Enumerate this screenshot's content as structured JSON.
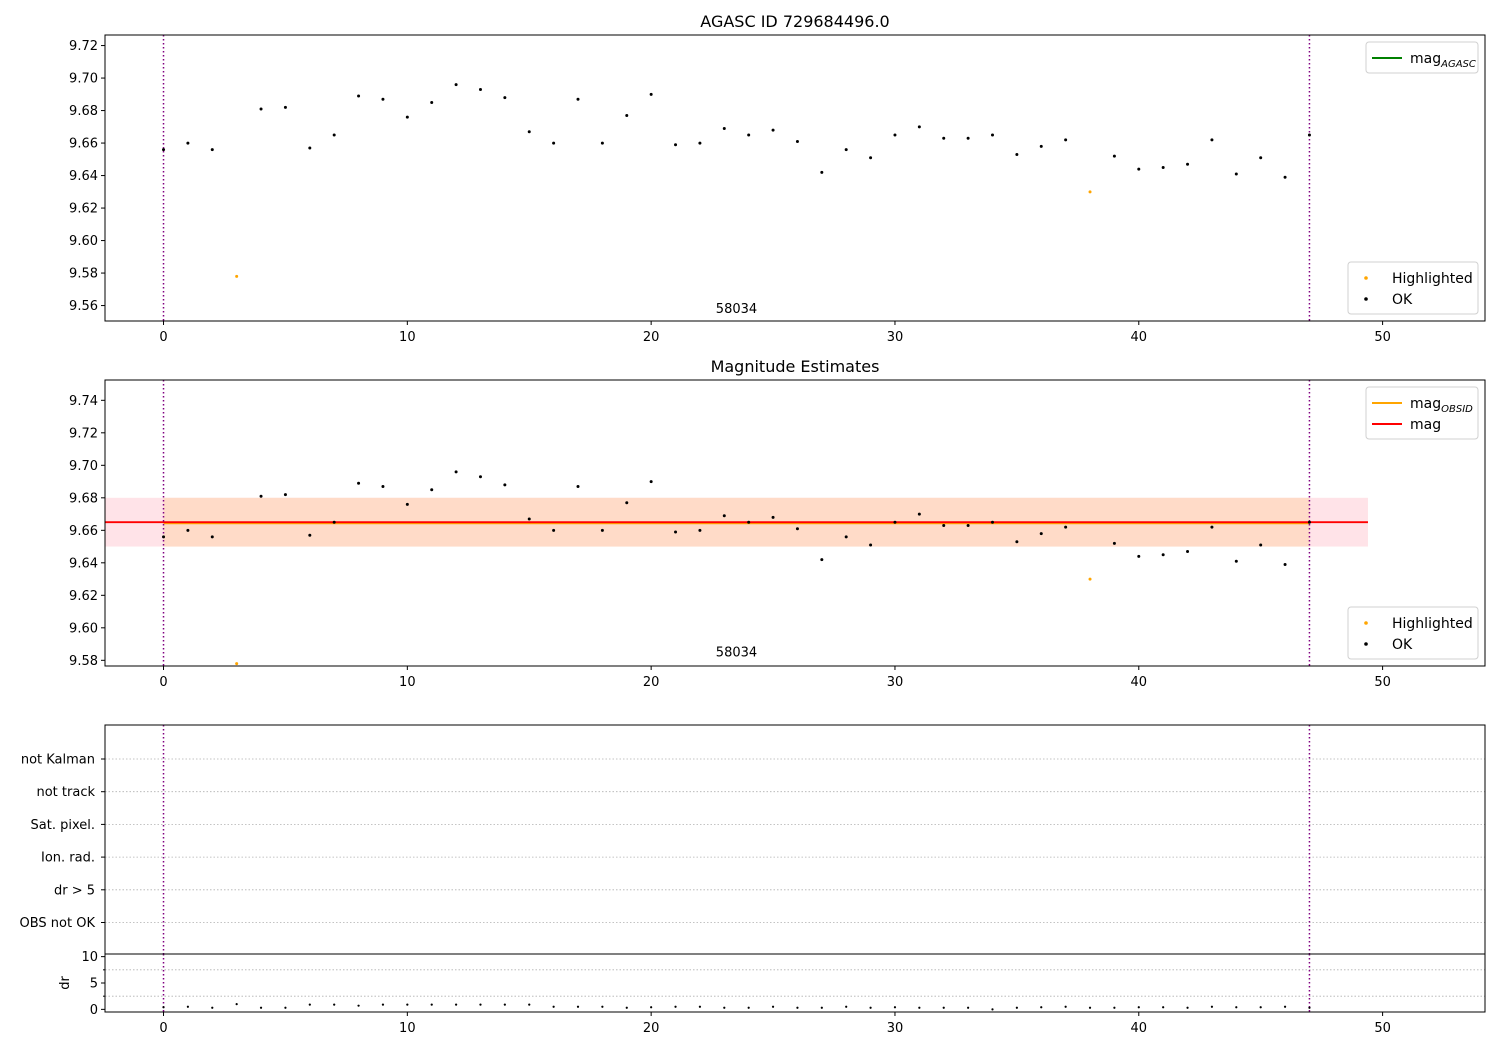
{
  "colors": {
    "ok": "#000000",
    "highlighted": "#FFA500",
    "mag_agasc": "#008000",
    "mag_obsid": "#FFA500",
    "mag": "#FF0000",
    "band_mag": "#FFC0CB",
    "band_obsid": "#FFD8BF",
    "obsid_boundary": "#800080",
    "grid": "#b0b0b0"
  },
  "chart_data": [
    {
      "id": "agasc",
      "type": "scatter",
      "title": "AGASC ID 729684496.0",
      "xlim": [
        -2.4,
        54.2
      ],
      "ylim": [
        9.5505,
        9.7265
      ],
      "yticks": [
        9.56,
        9.58,
        9.6,
        9.62,
        9.64,
        9.66,
        9.68,
        9.7,
        9.72
      ],
      "ytick_labels": [
        "9.56",
        "9.58",
        "9.60",
        "9.62",
        "9.64",
        "9.66",
        "9.68",
        "9.70",
        "9.72"
      ],
      "xticks": [
        0,
        10,
        20,
        30,
        40,
        50
      ],
      "xtick_labels": [
        "0",
        "10",
        "20",
        "30",
        "40",
        "50"
      ],
      "obsid_boundaries": [
        0,
        47
      ],
      "annotation": {
        "text": "58034",
        "x": 23.5,
        "y": 9.5555
      },
      "legend_top": {
        "position": "upper-right",
        "entries": [
          {
            "kind": "line",
            "color": "#008000",
            "label": "mag",
            "sub": "AGASC"
          }
        ]
      },
      "legend_bottom": {
        "position": "lower-right",
        "entries": [
          {
            "kind": "point",
            "color": "#FFA500",
            "label": "Highlighted"
          },
          {
            "kind": "point",
            "color": "#000000",
            "label": "OK"
          }
        ]
      },
      "series": [
        {
          "name": "OK",
          "points": [
            [
              0,
              9.656
            ],
            [
              1,
              9.66
            ],
            [
              2,
              9.656
            ],
            [
              4,
              9.681
            ],
            [
              5,
              9.682
            ],
            [
              6,
              9.657
            ],
            [
              7,
              9.665
            ],
            [
              8,
              9.689
            ],
            [
              9,
              9.687
            ],
            [
              10,
              9.676
            ],
            [
              11,
              9.685
            ],
            [
              12,
              9.696
            ],
            [
              13,
              9.693
            ],
            [
              14,
              9.688
            ],
            [
              15,
              9.667
            ],
            [
              16,
              9.66
            ],
            [
              17,
              9.687
            ],
            [
              18,
              9.66
            ],
            [
              19,
              9.677
            ],
            [
              20,
              9.69
            ],
            [
              21,
              9.659
            ],
            [
              22,
              9.66
            ],
            [
              23,
              9.669
            ],
            [
              24,
              9.665
            ],
            [
              25,
              9.668
            ],
            [
              26,
              9.661
            ],
            [
              27,
              9.642
            ],
            [
              28,
              9.656
            ],
            [
              29,
              9.651
            ],
            [
              30,
              9.665
            ],
            [
              31,
              9.67
            ],
            [
              32,
              9.663
            ],
            [
              33,
              9.663
            ],
            [
              34,
              9.665
            ],
            [
              35,
              9.653
            ],
            [
              36,
              9.658
            ],
            [
              37,
              9.662
            ],
            [
              39,
              9.652
            ],
            [
              40,
              9.644
            ],
            [
              41,
              9.645
            ],
            [
              42,
              9.647
            ],
            [
              43,
              9.662
            ],
            [
              44,
              9.641
            ],
            [
              45,
              9.651
            ],
            [
              46,
              9.639
            ],
            [
              47,
              9.665
            ]
          ]
        },
        {
          "name": "Highlighted",
          "points": [
            [
              3,
              9.578
            ],
            [
              38,
              9.63
            ]
          ]
        }
      ]
    },
    {
      "id": "estimates",
      "type": "scatter",
      "title": "Magnitude Estimates",
      "xlim": [
        -2.4,
        54.2
      ],
      "ylim": [
        9.5765,
        9.7525
      ],
      "yticks": [
        9.58,
        9.6,
        9.62,
        9.64,
        9.66,
        9.68,
        9.7,
        9.72,
        9.74
      ],
      "ytick_labels": [
        "9.58",
        "9.60",
        "9.62",
        "9.64",
        "9.66",
        "9.68",
        "9.70",
        "9.72",
        "9.74"
      ],
      "xticks": [
        0,
        10,
        20,
        30,
        40,
        50
      ],
      "xtick_labels": [
        "0",
        "10",
        "20",
        "30",
        "40",
        "50"
      ],
      "obsid_boundaries": [
        0,
        47
      ],
      "annotation": {
        "text": "58034",
        "x": 23.5,
        "y": 9.5825
      },
      "mag_line": {
        "x": [
          -2.4,
          49.4
        ],
        "y": 9.665,
        "band": [
          9.65,
          9.68
        ]
      },
      "mag_obsid_line": {
        "x": [
          0,
          47
        ],
        "y": 9.665,
        "band": [
          9.65,
          9.68
        ]
      },
      "legend_top": {
        "position": "upper-right",
        "entries": [
          {
            "kind": "line",
            "color": "#FFA500",
            "label": "mag",
            "sub": "OBSID"
          },
          {
            "kind": "line",
            "color": "#FF0000",
            "label": "mag",
            "sub": ""
          }
        ]
      },
      "legend_bottom": {
        "position": "lower-right",
        "entries": [
          {
            "kind": "point",
            "color": "#FFA500",
            "label": "Highlighted"
          },
          {
            "kind": "point",
            "color": "#000000",
            "label": "OK"
          }
        ]
      },
      "series": [
        {
          "name": "OK",
          "points": [
            [
              0,
              9.656
            ],
            [
              1,
              9.66
            ],
            [
              2,
              9.656
            ],
            [
              4,
              9.681
            ],
            [
              5,
              9.682
            ],
            [
              6,
              9.657
            ],
            [
              7,
              9.665
            ],
            [
              8,
              9.689
            ],
            [
              9,
              9.687
            ],
            [
              10,
              9.676
            ],
            [
              11,
              9.685
            ],
            [
              12,
              9.696
            ],
            [
              13,
              9.693
            ],
            [
              14,
              9.688
            ],
            [
              15,
              9.667
            ],
            [
              16,
              9.66
            ],
            [
              17,
              9.687
            ],
            [
              18,
              9.66
            ],
            [
              19,
              9.677
            ],
            [
              20,
              9.69
            ],
            [
              21,
              9.659
            ],
            [
              22,
              9.66
            ],
            [
              23,
              9.669
            ],
            [
              24,
              9.665
            ],
            [
              25,
              9.668
            ],
            [
              26,
              9.661
            ],
            [
              27,
              9.642
            ],
            [
              28,
              9.656
            ],
            [
              29,
              9.651
            ],
            [
              30,
              9.665
            ],
            [
              31,
              9.67
            ],
            [
              32,
              9.663
            ],
            [
              33,
              9.663
            ],
            [
              34,
              9.665
            ],
            [
              35,
              9.653
            ],
            [
              36,
              9.658
            ],
            [
              37,
              9.662
            ],
            [
              39,
              9.652
            ],
            [
              40,
              9.644
            ],
            [
              41,
              9.645
            ],
            [
              42,
              9.647
            ],
            [
              43,
              9.662
            ],
            [
              44,
              9.641
            ],
            [
              45,
              9.651
            ],
            [
              46,
              9.639
            ],
            [
              47,
              9.665
            ]
          ]
        },
        {
          "name": "Highlighted",
          "points": [
            [
              3,
              9.578
            ],
            [
              38,
              9.63
            ]
          ]
        }
      ]
    },
    {
      "id": "flags",
      "type": "table",
      "xlim": [
        -2.4,
        54.2
      ],
      "obsid_boundaries": [
        0,
        47
      ],
      "rows": [
        "not Kalman",
        "not track",
        "Sat. pixel.",
        "Ion. rad.",
        "dr > 5",
        "OBS not OK"
      ],
      "flags": []
    },
    {
      "id": "dr",
      "type": "scatter",
      "ylabel": "dr",
      "xlim": [
        -2.4,
        54.2
      ],
      "ylim": [
        -0.5,
        10.5
      ],
      "yticks": [
        0,
        5,
        10
      ],
      "ytick_labels": [
        "0",
        "5",
        "10"
      ],
      "xticks": [
        0,
        10,
        20,
        30,
        40,
        50
      ],
      "xtick_labels": [
        "0",
        "10",
        "20",
        "30",
        "40",
        "50"
      ],
      "obsid_boundaries": [
        0,
        47
      ],
      "series": [
        {
          "name": "dr",
          "points": [
            [
              0,
              0.4
            ],
            [
              1,
              0.5
            ],
            [
              2,
              0.3
            ],
            [
              3,
              1.0
            ],
            [
              4,
              0.3
            ],
            [
              5,
              0.3
            ],
            [
              6,
              0.9
            ],
            [
              7,
              0.9
            ],
            [
              8,
              0.7
            ],
            [
              9,
              0.9
            ],
            [
              10,
              0.9
            ],
            [
              11,
              0.9
            ],
            [
              12,
              0.9
            ],
            [
              13,
              0.9
            ],
            [
              14,
              0.9
            ],
            [
              15,
              0.9
            ],
            [
              16,
              0.5
            ],
            [
              17,
              0.5
            ],
            [
              18,
              0.5
            ],
            [
              19,
              0.3
            ],
            [
              20,
              0.4
            ],
            [
              21,
              0.5
            ],
            [
              22,
              0.5
            ],
            [
              23,
              0.3
            ],
            [
              24,
              0.3
            ],
            [
              25,
              0.5
            ],
            [
              26,
              0.3
            ],
            [
              27,
              0.3
            ],
            [
              28,
              0.5
            ],
            [
              29,
              0.3
            ],
            [
              30,
              0.4
            ],
            [
              31,
              0.3
            ],
            [
              32,
              0.3
            ],
            [
              33,
              0.3
            ],
            [
              34,
              0.0
            ],
            [
              35,
              0.3
            ],
            [
              36,
              0.4
            ],
            [
              37,
              0.5
            ],
            [
              38,
              0.3
            ],
            [
              39,
              0.3
            ],
            [
              40,
              0.4
            ],
            [
              41,
              0.4
            ],
            [
              42,
              0.3
            ],
            [
              43,
              0.5
            ],
            [
              44,
              0.4
            ],
            [
              45,
              0.4
            ],
            [
              46,
              0.5
            ],
            [
              47,
              0.3
            ]
          ]
        }
      ]
    }
  ]
}
